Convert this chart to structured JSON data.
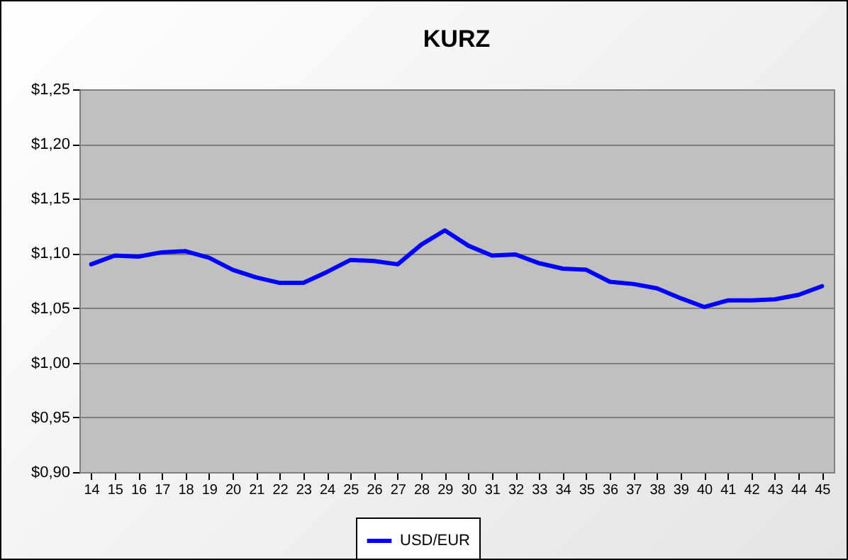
{
  "chart_data": {
    "type": "line",
    "title": "KURZ",
    "categories": [
      "14",
      "15",
      "16",
      "17",
      "18",
      "19",
      "20",
      "21",
      "22",
      "23",
      "24",
      "25",
      "26",
      "27",
      "28",
      "29",
      "30",
      "31",
      "32",
      "33",
      "34",
      "35",
      "36",
      "37",
      "38",
      "39",
      "40",
      "41",
      "42",
      "43",
      "44",
      "45"
    ],
    "series": [
      {
        "name": "USD/EUR",
        "color": "#0000ff",
        "values": [
          1.09,
          1.098,
          1.097,
          1.101,
          1.102,
          1.096,
          1.085,
          1.078,
          1.073,
          1.073,
          1.083,
          1.094,
          1.093,
          1.09,
          1.108,
          1.121,
          1.107,
          1.098,
          1.099,
          1.091,
          1.086,
          1.085,
          1.074,
          1.072,
          1.068,
          1.059,
          1.051,
          1.057,
          1.057,
          1.058,
          1.062,
          1.07
        ]
      }
    ],
    "ylim": [
      0.9,
      1.25
    ],
    "yticks": [
      {
        "value": 0.9,
        "label": "$0,90"
      },
      {
        "value": 0.95,
        "label": "$0,95"
      },
      {
        "value": 1.0,
        "label": "$1,00"
      },
      {
        "value": 1.05,
        "label": "$1,05"
      },
      {
        "value": 1.1,
        "label": "$1,10"
      },
      {
        "value": 1.15,
        "label": "$1,15"
      },
      {
        "value": 1.2,
        "label": "$1,20"
      },
      {
        "value": 1.25,
        "label": "$1,25"
      }
    ],
    "grid": "y",
    "legend": "bottom",
    "marker": "none",
    "line_style": "solid"
  }
}
